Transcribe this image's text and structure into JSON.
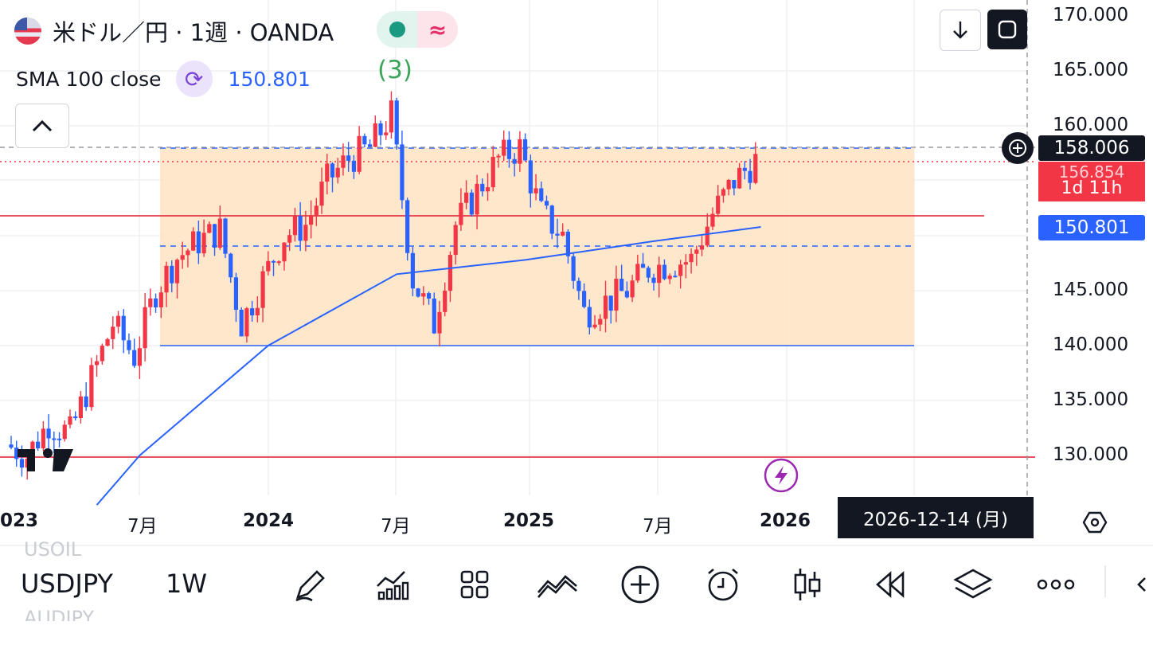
{
  "header": {
    "symbol_title": "米ドル／円 · 1週 · OANDA",
    "indicator_name": "SMA 100 close",
    "indicator_value": "150.801",
    "annotation": "(3)"
  },
  "price_axis": {
    "ticks": [
      "170.000",
      "165.000",
      "160.000",
      "145.000",
      "140.000",
      "135.000",
      "130.000"
    ],
    "current_price_tag": "158.006",
    "countdown_price": "156.854",
    "countdown_time": "1d 11h",
    "sma_tag": "150.801"
  },
  "time_axis": {
    "ticks": [
      "023",
      "7月",
      "2024",
      "7月",
      "2025",
      "7月",
      "2026"
    ],
    "crosshair_date": "2026-12-14 (月)"
  },
  "toolbar": {
    "symbol": "USDJPY",
    "interval": "1W",
    "ghost_above": "USOIL",
    "ghost_below": "AUDJPY",
    "icons": [
      "pencil-icon",
      "indicators-icon",
      "grid-icon",
      "compare-icon",
      "plus-circle-icon",
      "alarm-icon",
      "candles-icon",
      "replay-icon",
      "layers-icon",
      "more-icon"
    ]
  },
  "colors": {
    "up": "#f23645",
    "down": "#2962ff",
    "sma": "#2962ff",
    "zone": "#ffe3c2",
    "resistance": "#e0182d"
  },
  "chart_data": {
    "type": "candlestick",
    "symbol": "USDJPY",
    "interval": "1W",
    "x_range": [
      "2023-01",
      "2026-12"
    ],
    "y_range": [
      126,
      172
    ],
    "series": [
      {
        "name": "SMA 100 close",
        "start": [
          "2023-05",
          125.5
        ],
        "points": [
          [
            "2023-07",
            130
          ],
          [
            "2024-01",
            140
          ],
          [
            "2024-07",
            146.5
          ],
          [
            "2025-01",
            147.8
          ],
          [
            "2025-07",
            149.5
          ],
          [
            "2025-12",
            150.8
          ]
        ]
      }
    ],
    "levels": [
      {
        "price": 157.9,
        "style": "dashed",
        "color": "#2962ff"
      },
      {
        "price": 151.8,
        "style": "solid",
        "color": "#e0182d"
      },
      {
        "price": 149.0,
        "style": "dashed",
        "color": "#2962ff"
      },
      {
        "price": 140.0,
        "style": "solid",
        "color": "#2962ff"
      },
      {
        "price": 130.0,
        "style": "solid",
        "color": "#e0182d"
      }
    ],
    "zone": {
      "from": "2023-07",
      "to": "2026-06",
      "low": 140.0,
      "high": 157.9
    },
    "candles_close_path": [
      [
        "2023-01",
        131
      ],
      [
        "2023-02",
        130
      ],
      [
        "2023-03",
        133
      ],
      [
        "2023-04",
        132
      ],
      [
        "2023-05",
        137
      ],
      [
        "2023-06",
        142
      ],
      [
        "2023-07",
        139
      ],
      [
        "2023-08",
        145
      ],
      [
        "2023-09",
        148
      ],
      [
        "2023-10",
        149.5
      ],
      [
        "2023-11",
        150.5
      ],
      [
        "2023-12",
        142
      ],
      [
        "2024-01",
        146
      ],
      [
        "2024-02",
        150
      ],
      [
        "2024-03",
        151
      ],
      [
        "2024-04",
        155
      ],
      [
        "2024-05",
        157
      ],
      [
        "2024-06",
        158
      ],
      [
        "2024-07",
        161
      ],
      [
        "2024-08",
        146
      ],
      [
        "2024-09",
        142
      ],
      [
        "2024-10",
        151
      ],
      [
        "2024-11",
        154
      ],
      [
        "2024-12",
        157
      ],
      [
        "2025-01",
        158
      ],
      [
        "2025-02",
        152
      ],
      [
        "2025-03",
        150
      ],
      [
        "2025-04",
        143
      ],
      [
        "2025-05",
        144
      ],
      [
        "2025-06",
        145
      ],
      [
        "2025-07",
        147
      ],
      [
        "2025-08",
        147.5
      ],
      [
        "2025-09",
        147.8
      ],
      [
        "2025-10",
        152
      ],
      [
        "2025-11",
        155
      ],
      [
        "2025-12",
        156.8
      ]
    ]
  }
}
